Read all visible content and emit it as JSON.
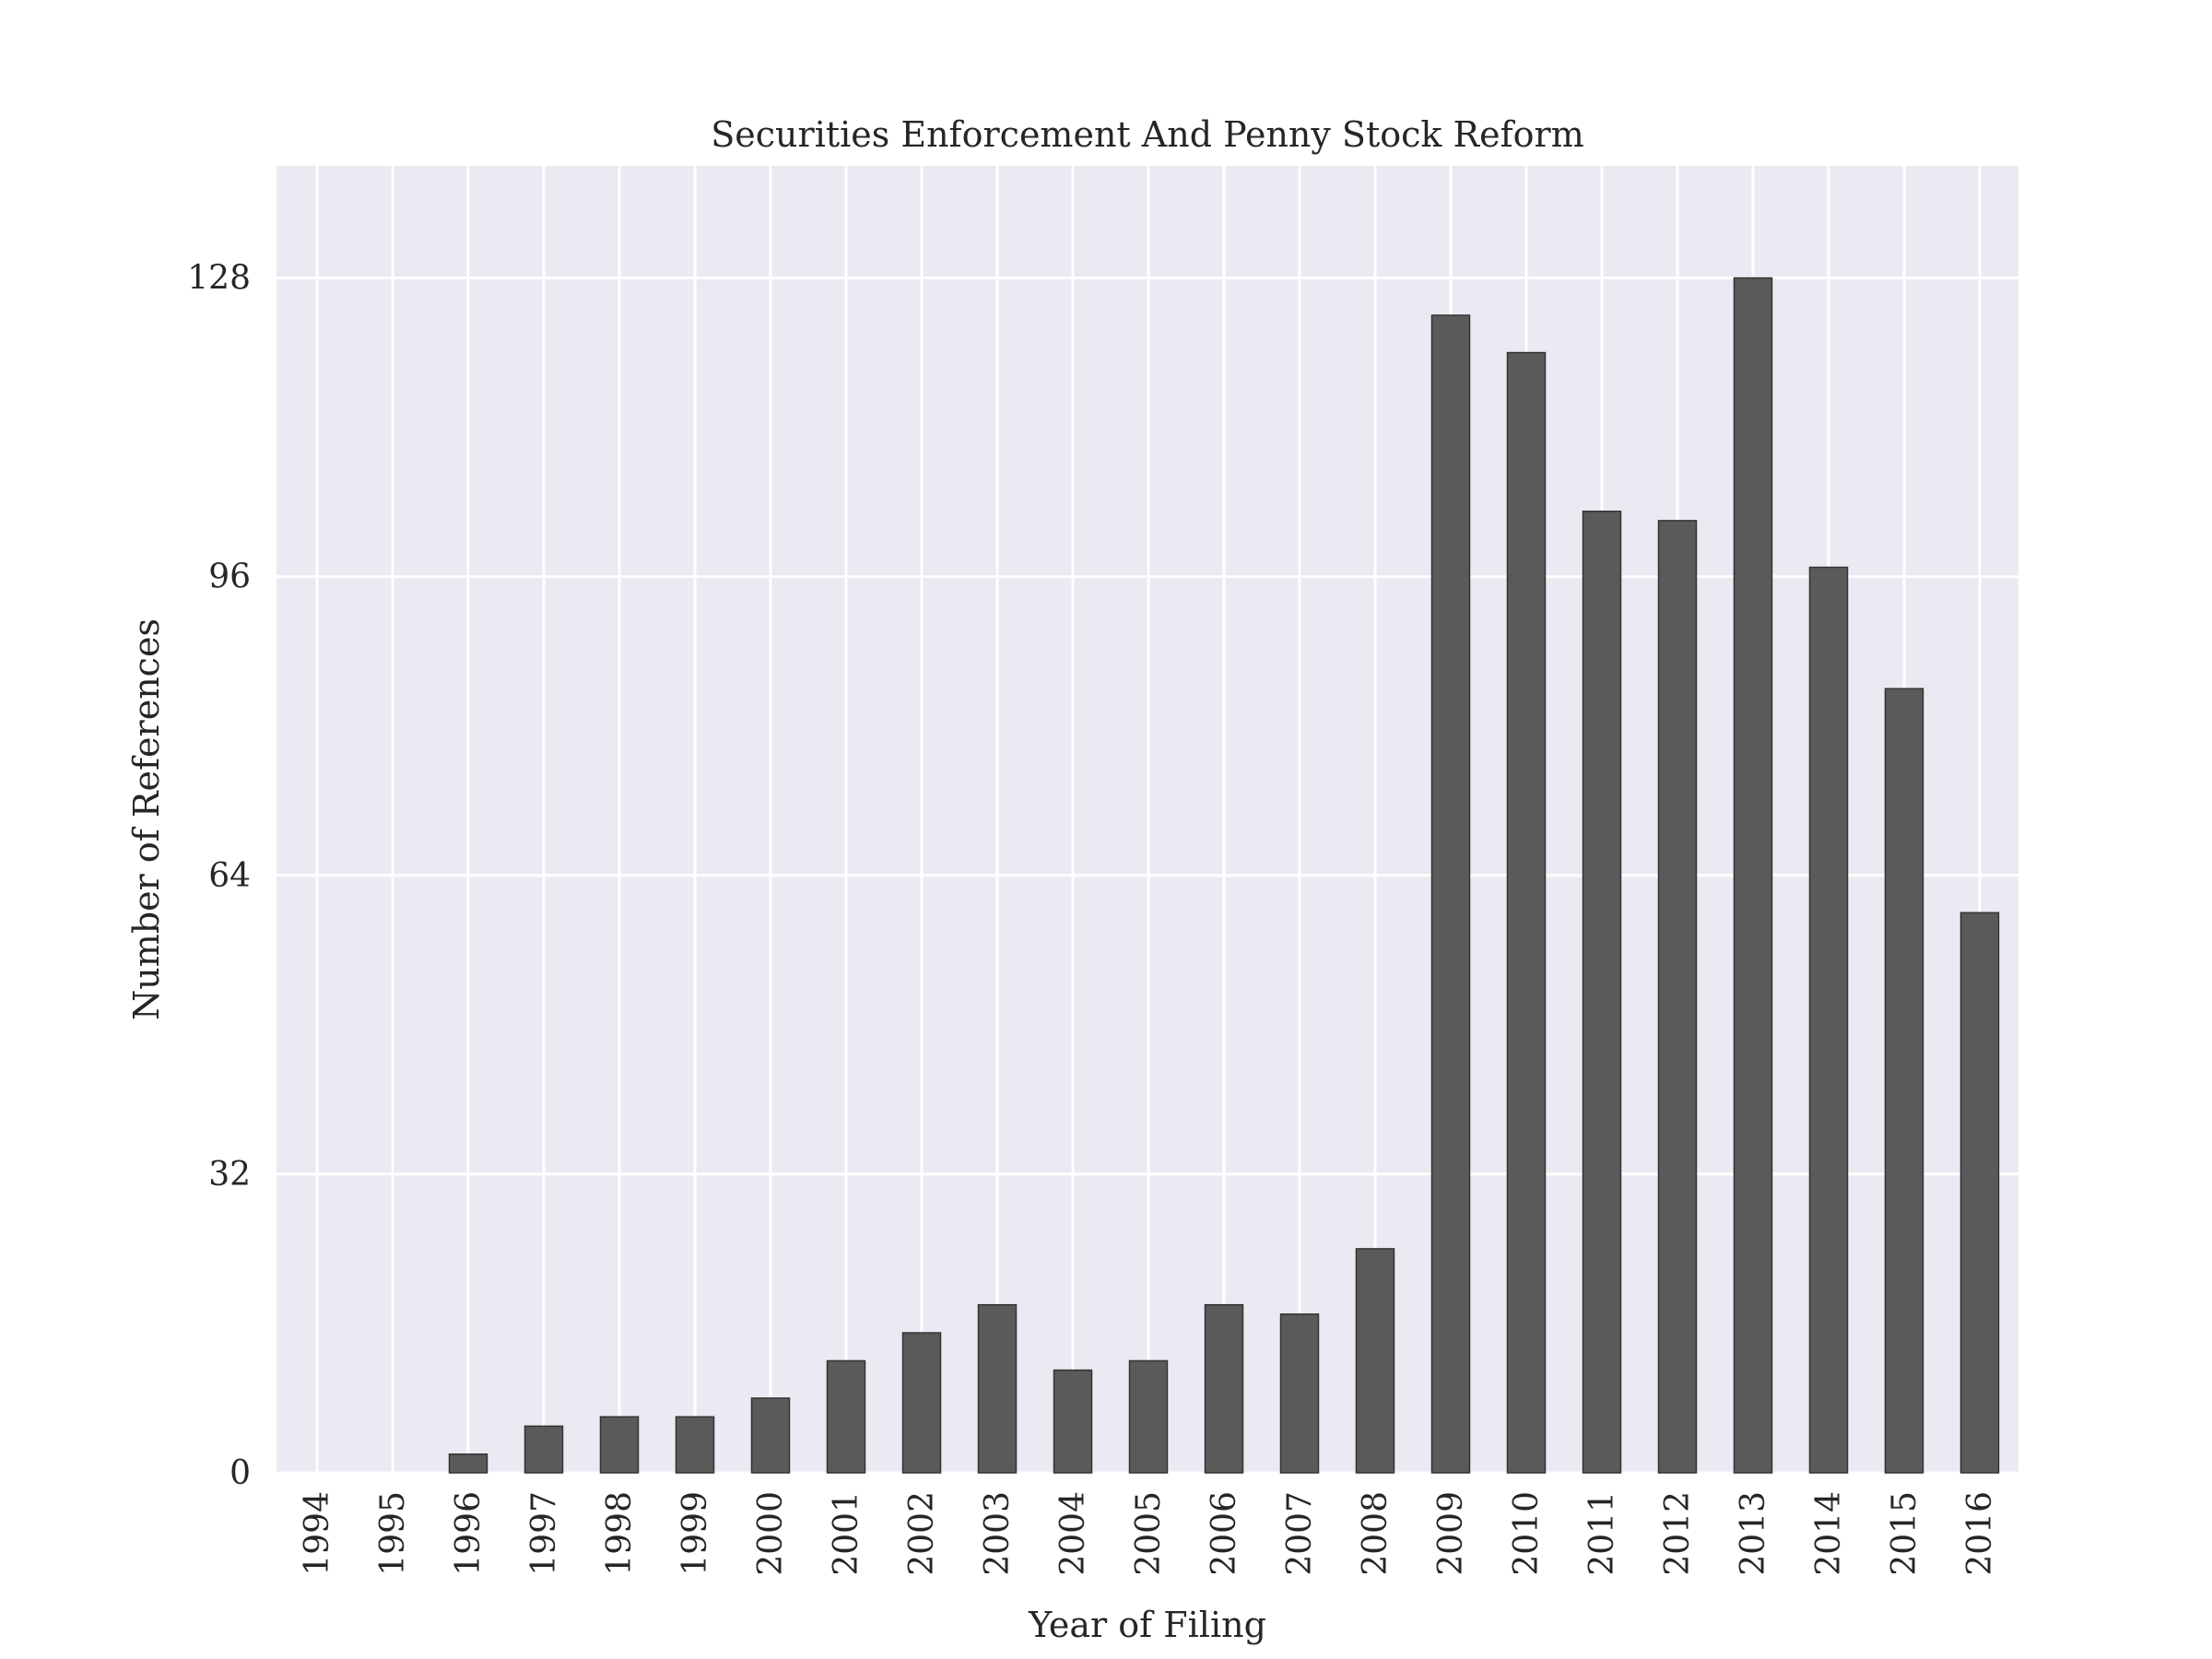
{
  "chart_data": {
    "type": "bar",
    "title": "Securities Enforcement And Penny Stock Reform",
    "xlabel": "Year of Filing",
    "ylabel": "Number of References",
    "categories": [
      "1994",
      "1995",
      "1996",
      "1997",
      "1998",
      "1999",
      "2000",
      "2001",
      "2002",
      "2003",
      "2004",
      "2005",
      "2006",
      "2007",
      "2008",
      "2009",
      "2010",
      "2011",
      "2012",
      "2013",
      "2014",
      "2015",
      "2016"
    ],
    "values": [
      0,
      0,
      2,
      5,
      6,
      6,
      8,
      12,
      15,
      18,
      11,
      12,
      18,
      17,
      24,
      124,
      120,
      103,
      102,
      128,
      97,
      84,
      60
    ],
    "yticks": [
      0,
      32,
      64,
      96,
      128
    ],
    "ylim": [
      0,
      140
    ],
    "grid": true,
    "colors": {
      "bar": "#5a5a5a",
      "bar_edge": "#333333",
      "background": "#eaeaf2",
      "grid": "#ffffff"
    }
  }
}
